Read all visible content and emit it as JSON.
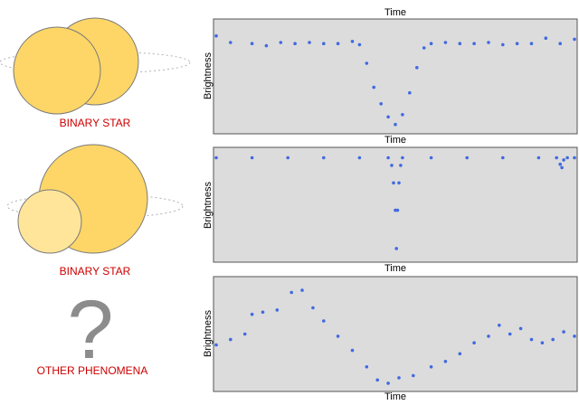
{
  "colors": {
    "plot_bg": "#dcdcdc",
    "point": "#4169e1",
    "star_fill": "#fdd667",
    "star_fill_light": "#fee59a",
    "star_stroke": "#7a7a7a",
    "caption": "#cc0000",
    "question_mark": "#8c8c8c"
  },
  "panels": [
    {
      "caption": "BINARY STAR",
      "illustration": "binary-star-equal",
      "x_label": "Time",
      "y_label": "Brightness"
    },
    {
      "caption": "BINARY STAR",
      "illustration": "binary-star-unequal",
      "x_label": "Time",
      "y_label": "Brightness"
    },
    {
      "caption": "OTHER PHENOMENA",
      "illustration": "question-mark-icon",
      "symbol": "?",
      "x_label": "Time",
      "y_label": "Brightness"
    }
  ],
  "chart_data": [
    {
      "type": "scatter",
      "title": "",
      "xlabel": "Time",
      "ylabel": "Brightness",
      "xlim": [
        0,
        1
      ],
      "ylim": [
        0,
        1
      ],
      "grid": false,
      "series": [
        {
          "points": [
            [
              0,
              0.87
            ],
            [
              0.04,
              0.81
            ],
            [
              0.1,
              0.8
            ],
            [
              0.14,
              0.78
            ],
            [
              0.18,
              0.81
            ],
            [
              0.22,
              0.8
            ],
            [
              0.26,
              0.81
            ],
            [
              0.3,
              0.8
            ],
            [
              0.34,
              0.8
            ],
            [
              0.38,
              0.82
            ],
            [
              0.4,
              0.79
            ],
            [
              0.42,
              0.62
            ],
            [
              0.44,
              0.4
            ],
            [
              0.46,
              0.25
            ],
            [
              0.48,
              0.13
            ],
            [
              0.5,
              0.06
            ],
            [
              0.52,
              0.15
            ],
            [
              0.54,
              0.35
            ],
            [
              0.56,
              0.58
            ],
            [
              0.58,
              0.76
            ],
            [
              0.6,
              0.8
            ],
            [
              0.64,
              0.81
            ],
            [
              0.68,
              0.8
            ],
            [
              0.72,
              0.8
            ],
            [
              0.76,
              0.81
            ],
            [
              0.8,
              0.79
            ],
            [
              0.84,
              0.8
            ],
            [
              0.88,
              0.8
            ],
            [
              0.92,
              0.85
            ],
            [
              0.96,
              0.8
            ],
            [
              1,
              0.84
            ]
          ]
        }
      ]
    },
    {
      "type": "scatter",
      "title": "",
      "xlabel": "Time",
      "ylabel": "Brightness",
      "xlim": [
        0,
        1
      ],
      "ylim": [
        0,
        1
      ],
      "grid": false,
      "series": [
        {
          "points": [
            [
              0,
              0.93
            ],
            [
              0.1,
              0.93
            ],
            [
              0.2,
              0.93
            ],
            [
              0.3,
              0.93
            ],
            [
              0.4,
              0.93
            ],
            [
              0.48,
              0.93
            ],
            [
              0.49,
              0.86
            ],
            [
              0.495,
              0.7
            ],
            [
              0.5,
              0.45
            ],
            [
              0.503,
              0.1
            ],
            [
              0.506,
              0.45
            ],
            [
              0.51,
              0.7
            ],
            [
              0.515,
              0.86
            ],
            [
              0.52,
              0.93
            ],
            [
              0.6,
              0.93
            ],
            [
              0.7,
              0.93
            ],
            [
              0.8,
              0.93
            ],
            [
              0.9,
              0.93
            ],
            [
              0.95,
              0.93
            ],
            [
              0.96,
              0.87
            ],
            [
              0.965,
              0.84
            ],
            [
              0.97,
              0.91
            ],
            [
              0.98,
              0.93
            ],
            [
              1,
              0.93
            ]
          ]
        }
      ]
    },
    {
      "type": "scatter",
      "title": "",
      "xlabel": "Time",
      "ylabel": "Brightness",
      "xlim": [
        0,
        1
      ],
      "ylim": [
        0,
        1
      ],
      "grid": false,
      "series": [
        {
          "points": [
            [
              0,
              0.4
            ],
            [
              0.04,
              0.45
            ],
            [
              0.08,
              0.5
            ],
            [
              0.1,
              0.68
            ],
            [
              0.13,
              0.7
            ],
            [
              0.17,
              0.72
            ],
            [
              0.21,
              0.88
            ],
            [
              0.24,
              0.9
            ],
            [
              0.27,
              0.74
            ],
            [
              0.3,
              0.62
            ],
            [
              0.34,
              0.48
            ],
            [
              0.38,
              0.35
            ],
            [
              0.42,
              0.2
            ],
            [
              0.45,
              0.08
            ],
            [
              0.48,
              0.05
            ],
            [
              0.51,
              0.1
            ],
            [
              0.55,
              0.12
            ],
            [
              0.6,
              0.2
            ],
            [
              0.64,
              0.25
            ],
            [
              0.68,
              0.32
            ],
            [
              0.72,
              0.42
            ],
            [
              0.76,
              0.48
            ],
            [
              0.79,
              0.58
            ],
            [
              0.82,
              0.5
            ],
            [
              0.85,
              0.55
            ],
            [
              0.88,
              0.45
            ],
            [
              0.91,
              0.42
            ],
            [
              0.94,
              0.45
            ],
            [
              0.97,
              0.52
            ],
            [
              1,
              0.48
            ]
          ]
        }
      ]
    }
  ]
}
